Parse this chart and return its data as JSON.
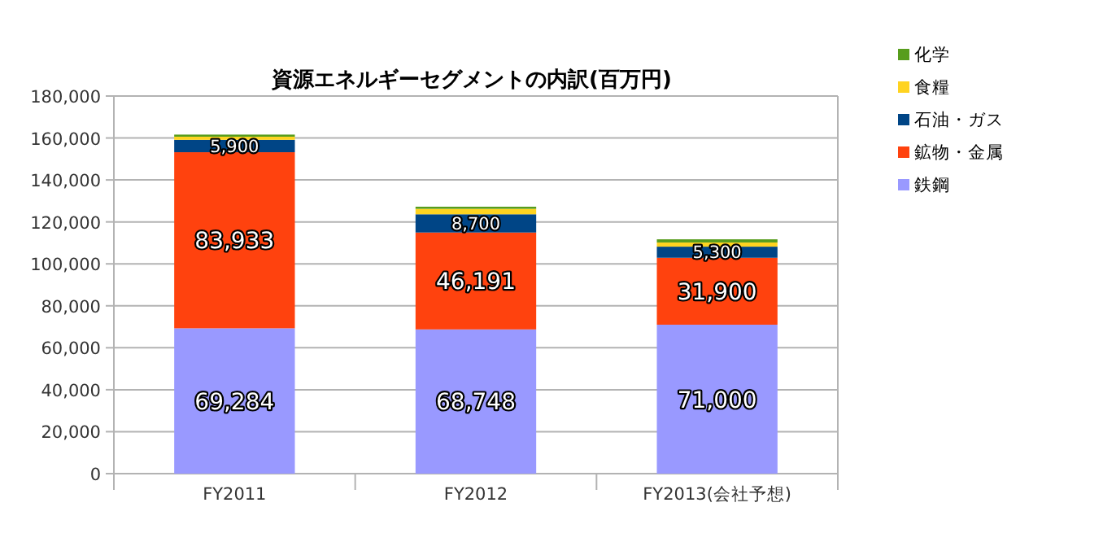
{
  "chart_data": {
    "type": "bar",
    "title": "資源エネルギーセグメントの内訳(百万円)",
    "categories": [
      "FY2011",
      "FY2012",
      "FY2013(会社予想)"
    ],
    "stacked": true,
    "series": [
      {
        "name": "鉄鋼",
        "color": "#9999ff",
        "values": [
          69284,
          68748,
          71000
        ],
        "value_labels": [
          "69,284",
          "68,748",
          "71,000"
        ]
      },
      {
        "name": "鉱物・金属",
        "color": "#ff420e",
        "values": [
          83933,
          46191,
          31900
        ],
        "value_labels": [
          "83,933",
          "46,191",
          "31,900"
        ]
      },
      {
        "name": "石油・ガス",
        "color": "#004586",
        "values": [
          5900,
          8700,
          5300
        ],
        "value_labels": [
          "5,900",
          "8,700",
          "5,300"
        ]
      },
      {
        "name": "食糧",
        "color": "#ffd320",
        "values": [
          1500,
          2600,
          2000
        ]
      },
      {
        "name": "化学",
        "color": "#579d1c",
        "values": [
          1000,
          1000,
          1500
        ]
      }
    ],
    "ylim": [
      0,
      180000
    ],
    "yticks": [
      {
        "value": 0,
        "label": "0"
      },
      {
        "value": 20000,
        "label": "20,000"
      },
      {
        "value": 40000,
        "label": "40,000"
      },
      {
        "value": 60000,
        "label": "60,000"
      },
      {
        "value": 80000,
        "label": "80,000"
      },
      {
        "value": 100000,
        "label": "100,000"
      },
      {
        "value": 120000,
        "label": "120,000"
      },
      {
        "value": 140000,
        "label": "140,000"
      },
      {
        "value": 160000,
        "label": "160,000"
      },
      {
        "value": 180000,
        "label": "180,000"
      }
    ],
    "grid": "y",
    "legend": "right"
  }
}
